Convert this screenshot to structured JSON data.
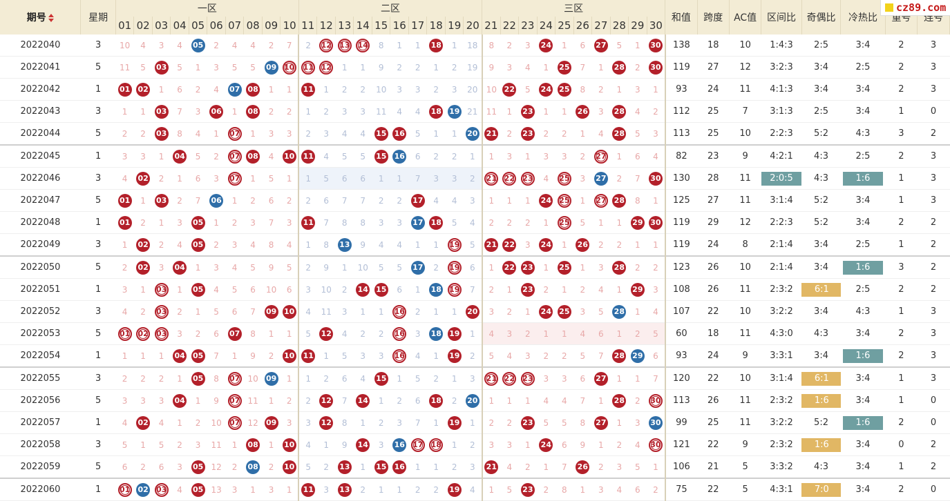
{
  "header": {
    "period": "期号",
    "weekday": "星期",
    "zone1": "一区",
    "zone2": "二区",
    "zone3": "三区",
    "sum": "和值",
    "span": "跨度",
    "ac": "AC值",
    "zone_ratio": "区间比",
    "odd_even": "奇偶比",
    "hot_cold": "冷热比",
    "repeat": "重号",
    "consec": "连号"
  },
  "logo_text": "cz89.com",
  "numbers": [
    "01",
    "02",
    "03",
    "04",
    "05",
    "06",
    "07",
    "08",
    "09",
    "10",
    "11",
    "12",
    "13",
    "14",
    "15",
    "16",
    "17",
    "18",
    "19",
    "20",
    "21",
    "22",
    "23",
    "24",
    "25",
    "26",
    "27",
    "28",
    "29",
    "30"
  ],
  "colors": {
    "red_ball": "#b3202a",
    "blue_ball": "#2f6ea8",
    "teal_tag": "#6f9fa1",
    "gold_tag": "#e1b764",
    "header_bg": "#f3ecd5"
  },
  "rows": [
    {
      "period": "2022040",
      "wk": "3",
      "cells": [
        "10",
        "4",
        "3",
        "4",
        "B05",
        "2",
        "4",
        "4",
        "2",
        "7",
        "2",
        "R12",
        "R13",
        "R14",
        "8",
        "1",
        "1",
        "S18",
        "1",
        "18",
        "8",
        "2",
        "3",
        "S24",
        "1",
        "6",
        "S27",
        "5",
        "1",
        "S30"
      ],
      "sum": "138",
      "span": "18",
      "ac": "10",
      "zr": "1:4:3",
      "oe": "2:5",
      "hc": "3:4",
      "rep": "2",
      "con": "3"
    },
    {
      "period": "2022041",
      "wk": "5",
      "cells": [
        "11",
        "5",
        "S03",
        "5",
        "1",
        "3",
        "5",
        "5",
        "B09",
        "R10",
        "R11",
        "R12",
        "1",
        "1",
        "9",
        "2",
        "2",
        "1",
        "2",
        "19",
        "9",
        "3",
        "4",
        "1",
        "S25",
        "7",
        "1",
        "S28",
        "2",
        "S30"
      ],
      "sum": "119",
      "span": "27",
      "ac": "12",
      "zr": "3:2:3",
      "oe": "3:4",
      "hc": "2:5",
      "rep": "2",
      "con": "3"
    },
    {
      "period": "2022042",
      "wk": "1",
      "cells": [
        "S01",
        "S02",
        "1",
        "6",
        "2",
        "4",
        "B07",
        "S08",
        "1",
        "1",
        "S11",
        "1",
        "2",
        "2",
        "10",
        "3",
        "3",
        "2",
        "3",
        "20",
        "10",
        "S22",
        "5",
        "S24",
        "S25",
        "8",
        "2",
        "1",
        "3",
        "1"
      ],
      "sum": "93",
      "span": "24",
      "ac": "11",
      "zr": "4:1:3",
      "oe": "3:4",
      "hc": "3:4",
      "rep": "2",
      "con": "3"
    },
    {
      "period": "2022043",
      "wk": "3",
      "cells": [
        "1",
        "1",
        "S03",
        "7",
        "3",
        "S06",
        "1",
        "S08",
        "2",
        "2",
        "1",
        "2",
        "3",
        "3",
        "11",
        "4",
        "4",
        "S18",
        "B19",
        "21",
        "11",
        "1",
        "S23",
        "1",
        "1",
        "S26",
        "3",
        "S28",
        "4",
        "2"
      ],
      "sum": "112",
      "span": "25",
      "ac": "7",
      "zr": "3:1:3",
      "oe": "2:5",
      "hc": "3:4",
      "rep": "1",
      "con": "0"
    },
    {
      "period": "2022044",
      "wk": "5",
      "cells": [
        "2",
        "2",
        "S03",
        "8",
        "4",
        "1",
        "R07",
        "1",
        "3",
        "3",
        "2",
        "3",
        "4",
        "4",
        "S15",
        "S16",
        "5",
        "1",
        "1",
        "B20",
        "S21",
        "2",
        "S23",
        "2",
        "2",
        "1",
        "4",
        "S28",
        "5",
        "3"
      ],
      "sum": "113",
      "span": "25",
      "ac": "10",
      "zr": "2:2:3",
      "oe": "5:2",
      "hc": "4:3",
      "rep": "3",
      "con": "2"
    },
    {
      "gap": true,
      "period": "2022045",
      "wk": "1",
      "cells": [
        "3",
        "3",
        "1",
        "S04",
        "5",
        "2",
        "R07",
        "S08",
        "4",
        "S10",
        "S11",
        "4",
        "5",
        "5",
        "S15",
        "B16",
        "6",
        "2",
        "2",
        "1",
        "1",
        "3",
        "1",
        "3",
        "3",
        "2",
        "R27",
        "1",
        "6",
        "4"
      ],
      "sum": "82",
      "span": "23",
      "ac": "9",
      "zr": "4:2:1",
      "oe": "4:3",
      "hc": "2:5",
      "rep": "2",
      "con": "3"
    },
    {
      "hl2": true,
      "period": "2022046",
      "wk": "3",
      "cells": [
        "4",
        "S02",
        "2",
        "1",
        "6",
        "3",
        "R07",
        "1",
        "5",
        "1",
        "1",
        "5",
        "6",
        "6",
        "1",
        "1",
        "7",
        "3",
        "3",
        "2",
        "R21",
        "R22",
        "R23",
        "4",
        "R25",
        "3",
        "B27",
        "2",
        "7",
        "S30"
      ],
      "sum": "130",
      "span": "28",
      "ac": "11",
      "zr": "T2:0:5",
      "oe": "4:3",
      "hc": "T1:6",
      "rep": "1",
      "con": "3"
    },
    {
      "period": "2022047",
      "wk": "5",
      "cells": [
        "S01",
        "1",
        "S03",
        "2",
        "7",
        "B06",
        "1",
        "2",
        "6",
        "2",
        "2",
        "6",
        "7",
        "7",
        "2",
        "2",
        "S17",
        "4",
        "4",
        "3",
        "1",
        "1",
        "1",
        "S24",
        "R25",
        "1",
        "R27",
        "S28",
        "8",
        "1"
      ],
      "sum": "125",
      "span": "27",
      "ac": "11",
      "zr": "3:1:4",
      "oe": "5:2",
      "hc": "3:4",
      "rep": "1",
      "con": "3"
    },
    {
      "period": "2022048",
      "wk": "1",
      "cells": [
        "S01",
        "2",
        "1",
        "3",
        "S05",
        "1",
        "2",
        "3",
        "7",
        "3",
        "S11",
        "7",
        "8",
        "8",
        "3",
        "3",
        "B17",
        "S18",
        "5",
        "4",
        "2",
        "2",
        "2",
        "1",
        "R25",
        "5",
        "1",
        "1",
        "S29",
        "S30"
      ],
      "sum": "119",
      "span": "29",
      "ac": "12",
      "zr": "2:2:3",
      "oe": "5:2",
      "hc": "3:4",
      "rep": "2",
      "con": "2"
    },
    {
      "period": "2022049",
      "wk": "3",
      "cells": [
        "1",
        "S02",
        "2",
        "4",
        "S05",
        "2",
        "3",
        "4",
        "8",
        "4",
        "1",
        "8",
        "B13",
        "9",
        "4",
        "4",
        "1",
        "1",
        "R19",
        "5",
        "S21",
        "S22",
        "3",
        "S24",
        "1",
        "S26",
        "2",
        "2",
        "1",
        "1"
      ],
      "sum": "119",
      "span": "24",
      "ac": "8",
      "zr": "2:1:4",
      "oe": "3:4",
      "hc": "2:5",
      "rep": "1",
      "con": "2"
    },
    {
      "gap": true,
      "period": "2022050",
      "wk": "5",
      "cells": [
        "2",
        "S02",
        "3",
        "S04",
        "1",
        "3",
        "4",
        "5",
        "9",
        "5",
        "2",
        "9",
        "1",
        "10",
        "5",
        "5",
        "B17",
        "2",
        "R19",
        "6",
        "1",
        "S22",
        "S23",
        "1",
        "S25",
        "1",
        "3",
        "S28",
        "2",
        "2"
      ],
      "sum": "123",
      "span": "26",
      "ac": "10",
      "zr": "2:1:4",
      "oe": "3:4",
      "hc": "T1:6",
      "rep": "3",
      "con": "2"
    },
    {
      "period": "2022051",
      "wk": "1",
      "cells": [
        "3",
        "1",
        "R03",
        "1",
        "S05",
        "4",
        "5",
        "6",
        "10",
        "6",
        "3",
        "10",
        "2",
        "S14",
        "S15",
        "6",
        "1",
        "B18",
        "R19",
        "7",
        "2",
        "1",
        "S23",
        "2",
        "1",
        "2",
        "4",
        "1",
        "S29",
        "3"
      ],
      "sum": "108",
      "span": "26",
      "ac": "11",
      "zr": "2:3:2",
      "oe": "G6:1",
      "hc": "2:5",
      "rep": "2",
      "con": "2"
    },
    {
      "period": "2022052",
      "wk": "3",
      "cells": [
        "4",
        "2",
        "R03",
        "2",
        "1",
        "5",
        "6",
        "7",
        "S09",
        "S10",
        "4",
        "11",
        "3",
        "1",
        "1",
        "R16",
        "2",
        "1",
        "1",
        "S20",
        "3",
        "2",
        "1",
        "S24",
        "S25",
        "3",
        "5",
        "B28",
        "1",
        "4"
      ],
      "sum": "107",
      "span": "22",
      "ac": "10",
      "zr": "3:2:2",
      "oe": "3:4",
      "hc": "4:3",
      "rep": "1",
      "con": "3"
    },
    {
      "hl3": true,
      "period": "2022053",
      "wk": "5",
      "cells": [
        "R01",
        "R02",
        "R03",
        "3",
        "2",
        "6",
        "S07",
        "8",
        "1",
        "1",
        "5",
        "S12",
        "4",
        "2",
        "2",
        "R16",
        "3",
        "B18",
        "S19",
        "1",
        "4",
        "3",
        "2",
        "1",
        "1",
        "4",
        "6",
        "1",
        "2",
        "5"
      ],
      "sum": "60",
      "span": "18",
      "ac": "11",
      "zr": "4:3:0",
      "oe": "4:3",
      "hc": "3:4",
      "rep": "2",
      "con": "3"
    },
    {
      "period": "2022054",
      "wk": "1",
      "cells": [
        "1",
        "1",
        "1",
        "S04",
        "S05",
        "7",
        "1",
        "9",
        "2",
        "S10",
        "S11",
        "1",
        "5",
        "3",
        "3",
        "R16",
        "4",
        "1",
        "S19",
        "2",
        "5",
        "4",
        "3",
        "2",
        "2",
        "5",
        "7",
        "S28",
        "B29",
        "6"
      ],
      "sum": "93",
      "span": "24",
      "ac": "9",
      "zr": "3:3:1",
      "oe": "3:4",
      "hc": "T1:6",
      "rep": "2",
      "con": "3"
    },
    {
      "gap": true,
      "period": "2022055",
      "wk": "3",
      "cells": [
        "2",
        "2",
        "2",
        "1",
        "S05",
        "8",
        "R07",
        "10",
        "B09",
        "1",
        "1",
        "2",
        "6",
        "4",
        "S15",
        "1",
        "5",
        "2",
        "1",
        "3",
        "R21",
        "R22",
        "R23",
        "3",
        "3",
        "6",
        "S27",
        "1",
        "1",
        "7"
      ],
      "sum": "120",
      "span": "22",
      "ac": "10",
      "zr": "3:1:4",
      "oe": "G6:1",
      "hc": "3:4",
      "rep": "1",
      "con": "3"
    },
    {
      "period": "2022056",
      "wk": "5",
      "cells": [
        "3",
        "3",
        "3",
        "S04",
        "1",
        "9",
        "R07",
        "11",
        "1",
        "2",
        "2",
        "S12",
        "7",
        "S14",
        "1",
        "2",
        "6",
        "S18",
        "2",
        "B20",
        "1",
        "1",
        "1",
        "4",
        "4",
        "7",
        "1",
        "S28",
        "2",
        "R30"
      ],
      "sum": "113",
      "span": "26",
      "ac": "11",
      "zr": "2:3:2",
      "oe": "G1:6",
      "hc": "3:4",
      "rep": "1",
      "con": "0"
    },
    {
      "period": "2022057",
      "wk": "1",
      "cells": [
        "4",
        "S02",
        "4",
        "1",
        "2",
        "10",
        "R07",
        "12",
        "S09",
        "3",
        "3",
        "S12",
        "8",
        "1",
        "2",
        "3",
        "7",
        "1",
        "S19",
        "1",
        "2",
        "2",
        "S23",
        "5",
        "5",
        "8",
        "S27",
        "1",
        "3",
        "B30"
      ],
      "sum": "99",
      "span": "25",
      "ac": "11",
      "zr": "3:2:2",
      "oe": "5:2",
      "hc": "T1:6",
      "rep": "2",
      "con": "0"
    },
    {
      "period": "2022058",
      "wk": "3",
      "cells": [
        "5",
        "1",
        "5",
        "2",
        "3",
        "11",
        "1",
        "S08",
        "1",
        "S10",
        "4",
        "1",
        "9",
        "S14",
        "3",
        "B16",
        "R17",
        "R18",
        "1",
        "2",
        "3",
        "3",
        "1",
        "S24",
        "6",
        "9",
        "1",
        "2",
        "4",
        "R30"
      ],
      "sum": "121",
      "span": "22",
      "ac": "9",
      "zr": "2:3:2",
      "oe": "G1:6",
      "hc": "3:4",
      "rep": "0",
      "con": "2"
    },
    {
      "period": "2022059",
      "wk": "5",
      "cells": [
        "6",
        "2",
        "6",
        "3",
        "S05",
        "12",
        "2",
        "B08",
        "2",
        "S10",
        "5",
        "2",
        "S13",
        "1",
        "S15",
        "S16",
        "1",
        "1",
        "2",
        "3",
        "S21",
        "4",
        "2",
        "1",
        "7",
        "S26",
        "2",
        "3",
        "5",
        "1"
      ],
      "sum": "106",
      "span": "21",
      "ac": "5",
      "zr": "3:3:2",
      "oe": "4:3",
      "hc": "3:4",
      "rep": "1",
      "con": "2"
    },
    {
      "gap": true,
      "period": "2022060",
      "wk": "1",
      "cells": [
        "R01",
        "B02",
        "R03",
        "4",
        "S05",
        "13",
        "3",
        "1",
        "3",
        "1",
        "S11",
        "3",
        "S13",
        "2",
        "1",
        "1",
        "2",
        "2",
        "S19",
        "4",
        "1",
        "5",
        "S23",
        "2",
        "8",
        "1",
        "3",
        "4",
        "6",
        "2"
      ],
      "sum": "75",
      "span": "22",
      "ac": "5",
      "zr": "4:3:1",
      "oe": "G7:0",
      "hc": "3:4",
      "rep": "2",
      "con": "0"
    }
  ]
}
